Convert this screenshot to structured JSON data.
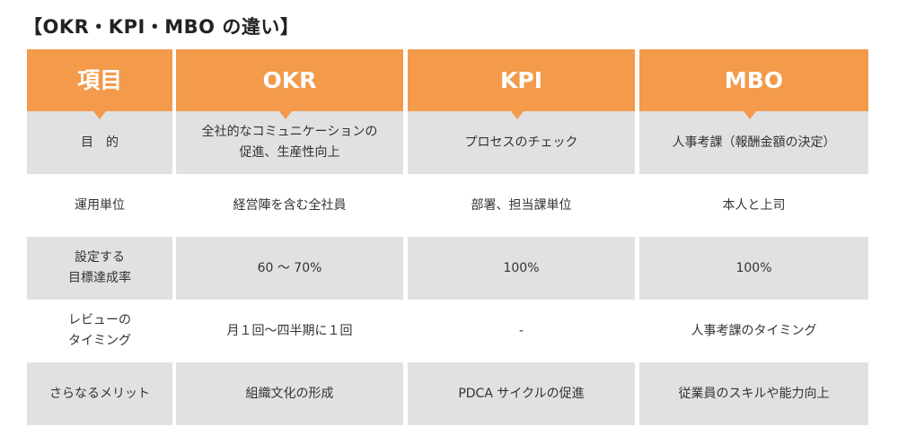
{
  "title": "【OKR・KPI・MBO の違い】",
  "headers": [
    "項目",
    "OKR",
    "KPI",
    "MBO"
  ],
  "rows": [
    {
      "label": "目　的",
      "okr": "全社的なコミュニケーションの\n促進、生産性向上",
      "kpi": "プロセスのチェック",
      "mbo": "人事考課（報酬金額の決定）"
    },
    {
      "label": "運用単位",
      "okr": "経営陣を含む全社員",
      "kpi": "部署、担当課単位",
      "mbo": "本人と上司"
    },
    {
      "label": "設定する\n目標達成率",
      "okr": "60 ～ 70%",
      "kpi": "100%",
      "mbo": "100%"
    },
    {
      "label": "レビューの\nタイミング",
      "okr": "月１回〜四半期に１回",
      "kpi": "-",
      "mbo": "人事考課のタイミング"
    },
    {
      "label": "さらなるメリット",
      "okr": "組織文化の形成",
      "kpi": "PDCA サイクルの促進",
      "mbo": "従業員のスキルや能力向上"
    }
  ],
  "colors": {
    "header_bg": "#f39a4b",
    "header_text": "#ffffff",
    "row_grey": "#e1e1e1",
    "row_white": "#ffffff"
  }
}
